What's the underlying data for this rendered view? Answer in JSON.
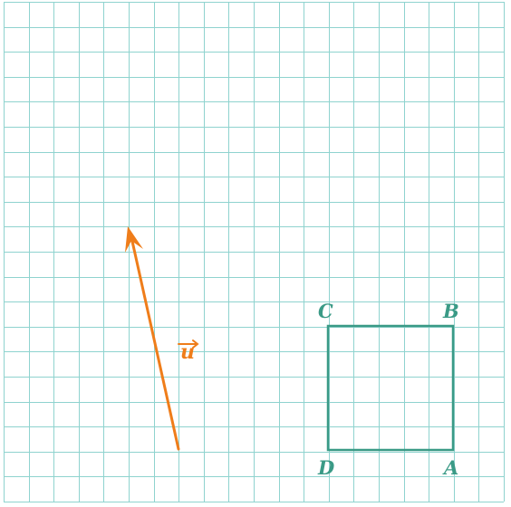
{
  "colors": {
    "grid": "#8fd3cf",
    "square": "#3a9a86",
    "vector": "#ef7d1a"
  },
  "vector": {
    "label": "u"
  },
  "square": {
    "vertices": {
      "A": "A",
      "B": "B",
      "C": "C",
      "D": "D"
    }
  }
}
